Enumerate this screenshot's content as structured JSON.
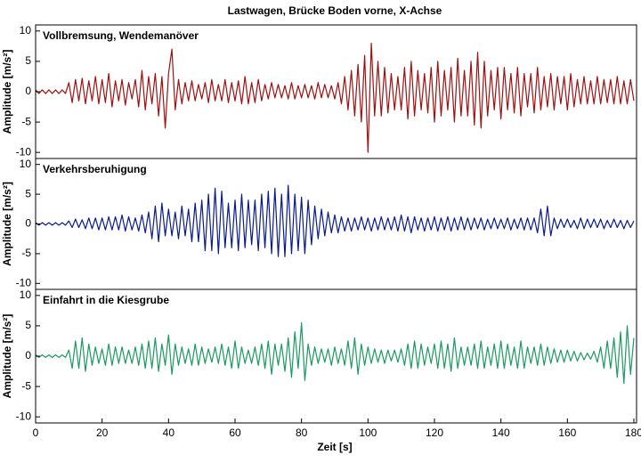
{
  "chart_data": {
    "title": "Lastwagen, Brücke Boden vorne, X-Achse",
    "xlabel": "Zeit [s]",
    "xlim": [
      0,
      180
    ],
    "xticks": [
      0,
      20,
      40,
      60,
      80,
      100,
      120,
      140,
      160,
      180
    ],
    "x": [
      0,
      1,
      2,
      3,
      4,
      5,
      6,
      7,
      8,
      9,
      10,
      11,
      12,
      13,
      14,
      15,
      16,
      17,
      18,
      19,
      20,
      21,
      22,
      23,
      24,
      25,
      26,
      27,
      28,
      29,
      30,
      31,
      32,
      33,
      34,
      35,
      36,
      37,
      38,
      39,
      40,
      41,
      42,
      43,
      44,
      45,
      46,
      47,
      48,
      49,
      50,
      51,
      52,
      53,
      54,
      55,
      56,
      57,
      58,
      59,
      60,
      61,
      62,
      63,
      64,
      65,
      66,
      67,
      68,
      69,
      70,
      71,
      72,
      73,
      74,
      75,
      76,
      77,
      78,
      79,
      80,
      81,
      82,
      83,
      84,
      85,
      86,
      87,
      88,
      89,
      90,
      91,
      92,
      93,
      94,
      95,
      96,
      97,
      98,
      99,
      100,
      101,
      102,
      103,
      104,
      105,
      106,
      107,
      108,
      109,
      110,
      111,
      112,
      113,
      114,
      115,
      116,
      117,
      118,
      119,
      120,
      121,
      122,
      123,
      124,
      125,
      126,
      127,
      128,
      129,
      130,
      131,
      132,
      133,
      134,
      135,
      136,
      137,
      138,
      139,
      140,
      141,
      142,
      143,
      144,
      145,
      146,
      147,
      148,
      149,
      150,
      151,
      152,
      153,
      154,
      155,
      156,
      157,
      158,
      159,
      160,
      161,
      162,
      163,
      164,
      165,
      166,
      167,
      168,
      169,
      170,
      171,
      172,
      173,
      174,
      175,
      176,
      177,
      178,
      179,
      180
    ],
    "panels": [
      {
        "type": "line",
        "title": "Vollbremsung, Wendemanöver",
        "ylabel": "Amplitude [m/s²]",
        "color": "#a01010",
        "ylim": [
          -11,
          11
        ],
        "yticks": [
          -10,
          -5,
          0,
          5,
          10
        ],
        "values": [
          0.3,
          -0.3,
          0.3,
          -0.3,
          0.3,
          -0.3,
          0.3,
          -0.3,
          0.3,
          -0.3,
          1.5,
          -1.8,
          2,
          -1.5,
          2.2,
          -2,
          1.8,
          -1.5,
          2.5,
          -2,
          2,
          -1.8,
          3,
          -2.5,
          1.8,
          -1.5,
          2,
          -2.2,
          1.5,
          -1.2,
          2,
          -2.5,
          3.5,
          -3,
          2.5,
          -2,
          3,
          -4,
          2.5,
          -6,
          3,
          7,
          -3,
          2,
          -2,
          1.5,
          -1.5,
          1.8,
          -1.5,
          1.2,
          -1.2,
          1.5,
          -1.8,
          2,
          -1.5,
          1.2,
          -1.5,
          2,
          -1.8,
          1.5,
          -1.5,
          1.8,
          -2,
          2.5,
          -2,
          1.5,
          -1.8,
          2,
          -1.5,
          1.2,
          -1.2,
          1.5,
          -1,
          1.2,
          -1,
          1,
          -1.2,
          1.5,
          -1.2,
          1,
          -1,
          1.2,
          -1,
          1,
          -1.2,
          1.5,
          -1,
          1.2,
          -1,
          1,
          -1.2,
          1.5,
          -2,
          2.5,
          -3,
          3.5,
          -4,
          4.5,
          -5,
          6,
          -10,
          8,
          -4,
          5,
          -4,
          4,
          -3.5,
          3,
          -3,
          2.5,
          -3,
          4,
          -4.5,
          5,
          -4,
          3.5,
          -3,
          3,
          -3.5,
          4,
          -5,
          5,
          -4,
          3.5,
          -3,
          4,
          -5,
          5.5,
          -4,
          3.5,
          -4,
          5,
          -5.5,
          6.5,
          -6,
          5,
          -4,
          3.5,
          -3,
          4,
          -4.5,
          4,
          -3,
          3,
          -3.5,
          4,
          -4,
          3,
          -2.5,
          3,
          -3.5,
          4,
          -3,
          2.5,
          -2.5,
          3,
          -3,
          2.5,
          -2,
          2.5,
          -3,
          3,
          -2.5,
          2,
          -2,
          2.5,
          -2,
          1.8,
          -2,
          2.5,
          -2,
          2,
          -1.8,
          2,
          -2,
          2.5,
          -2,
          1.8,
          -2,
          2,
          -1.5
        ]
      },
      {
        "type": "line",
        "title": "Verkehrsberuhigung",
        "ylabel": "Amplitude [m/s²]",
        "color": "#0a1a8c",
        "ylim": [
          -11,
          11
        ],
        "yticks": [
          -10,
          -5,
          0,
          5,
          10
        ],
        "values": [
          0.2,
          -0.2,
          0.2,
          -0.2,
          0.2,
          -0.2,
          0.2,
          -0.2,
          0.2,
          -0.2,
          0.5,
          -0.6,
          0.8,
          -0.6,
          0.7,
          -0.8,
          1,
          -0.8,
          1,
          -1,
          1,
          -1,
          1.2,
          -1,
          1.2,
          -1,
          1.5,
          -1.2,
          1.2,
          -1,
          1,
          -1.2,
          1.5,
          -1.5,
          2,
          -2.5,
          3,
          -3,
          3.5,
          -2,
          2.5,
          -2,
          2,
          -2.5,
          3,
          -2,
          2.5,
          -3,
          3.5,
          -3,
          4,
          -4.5,
          5,
          -4.5,
          6,
          -5,
          5.5,
          -4,
          3.5,
          -4,
          4,
          -4.5,
          5,
          -4,
          4,
          -3.5,
          4,
          -4.5,
          5,
          -4,
          5.5,
          -5,
          6,
          -5.5,
          5,
          -5.5,
          6.5,
          -5,
          5,
          -4.5,
          4.5,
          -5,
          4,
          -3.5,
          3,
          -2.5,
          2.5,
          -2,
          2,
          -1.5,
          1.5,
          -1.5,
          1.2,
          -1.2,
          1,
          -1.2,
          1,
          -1,
          1.2,
          -1,
          1,
          -1.2,
          1,
          -1,
          1.2,
          -1,
          1,
          -1,
          1.2,
          -1.2,
          1.5,
          -1.2,
          1.2,
          -1.5,
          1.2,
          -1,
          1,
          -1.2,
          1,
          -1,
          1.2,
          -1.2,
          1,
          -1,
          1.2,
          -1.2,
          1,
          -1,
          1.2,
          -1,
          1,
          -1,
          1,
          -0.8,
          1,
          -1,
          0.8,
          -0.8,
          1,
          -0.8,
          0.8,
          -0.8,
          1,
          -1,
          0.8,
          -0.8,
          1,
          -1,
          1,
          -1,
          1,
          -1.5,
          2.5,
          -2,
          3,
          -2,
          1,
          -0.8,
          0.8,
          -0.6,
          0.8,
          -0.6,
          0.6,
          -0.8,
          1,
          -0.8,
          0.8,
          -0.6,
          0.8,
          -0.6,
          0.8,
          -0.8,
          0.6,
          -0.6,
          0.8,
          -0.6,
          0.6,
          -0.8,
          0.6,
          -0.6,
          0.5
        ]
      },
      {
        "type": "line",
        "title": "Einfahrt in die Kiesgrube",
        "ylabel": "Amplitude [m/s²]",
        "color": "#1a9a60",
        "ylim": [
          -11,
          11
        ],
        "yticks": [
          -10,
          -5,
          0,
          5,
          10
        ],
        "values": [
          0.2,
          -0.2,
          0.2,
          -0.2,
          0.2,
          -0.2,
          0.2,
          -0.2,
          0.2,
          -0.2,
          1,
          -2,
          2.5,
          -2,
          3,
          -2.5,
          2,
          -1.5,
          1.5,
          -1.2,
          1.2,
          -1.5,
          2,
          -1.5,
          1.5,
          -1.2,
          1.5,
          -1.2,
          1,
          -1.2,
          1.5,
          -1.5,
          2,
          -2,
          2.5,
          -2,
          3,
          -2.5,
          2,
          -1.5,
          3.5,
          -3,
          2,
          -1.5,
          1.5,
          -1.2,
          1.2,
          -1.5,
          2,
          -1.5,
          1.5,
          -1.2,
          1.2,
          -1,
          1.5,
          -1.2,
          2,
          -1.5,
          1.5,
          -2,
          2.5,
          -2,
          1.5,
          -1.2,
          1,
          -1.2,
          1.5,
          -1.5,
          2,
          -2,
          2.5,
          -3,
          2,
          -1.5,
          2,
          -2.5,
          3,
          -3.5,
          4,
          -2,
          5.5,
          -4,
          2,
          -1.5,
          1.5,
          -1.2,
          1.2,
          -1,
          1.2,
          -1.5,
          1.5,
          -1.2,
          1.2,
          -1.5,
          2.5,
          -2,
          3,
          -3,
          2,
          -1.5,
          1.5,
          -1.2,
          1.2,
          -1,
          1,
          -1.2,
          1,
          -0.8,
          1,
          -1,
          1.2,
          -1.5,
          2,
          -2,
          2.5,
          -2,
          2,
          -1.5,
          1.5,
          -1.2,
          2,
          -2,
          2.5,
          -2,
          2,
          -2.5,
          3,
          -2,
          1.5,
          -1.5,
          1.5,
          -1.5,
          2,
          -2,
          2.5,
          -2,
          1.5,
          -1.5,
          2,
          -2,
          2.5,
          -2,
          2,
          -1.5,
          1.5,
          -2,
          2.5,
          -2,
          1.5,
          -1.2,
          1.5,
          -1.5,
          2,
          -1.5,
          1.5,
          -1.2,
          1.2,
          -1,
          1,
          -1,
          1,
          -0.8,
          0.8,
          -0.8,
          0.6,
          -0.6,
          0.5,
          -0.5,
          0.8,
          -1,
          1.5,
          -2,
          2.5,
          -2,
          3,
          -3.5,
          4,
          -4.5,
          5,
          -3,
          3
        ]
      }
    ]
  }
}
